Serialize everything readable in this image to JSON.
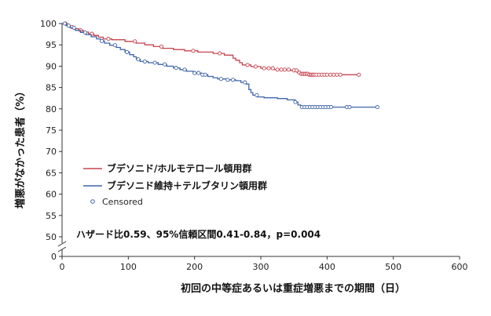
{
  "chart_data": {
    "type": "line",
    "subtype": "kaplan-meier",
    "title": "",
    "xlabel": "初回の中等症あるいは重症増悪までの期間（日）",
    "ylabel": "増悪がなかった患者（%）",
    "xlim": [
      0,
      600
    ],
    "ylim": [
      50,
      100
    ],
    "y_axis_break": true,
    "x_ticks": [
      0,
      100,
      200,
      300,
      400,
      500,
      600
    ],
    "x_tick_labels": [
      "0",
      "100",
      "200",
      "300",
      "400",
      "500",
      "600"
    ],
    "y_ticks": [
      50,
      55,
      60,
      65,
      70,
      75,
      80,
      85,
      90,
      95,
      100
    ],
    "y_tick_labels": [
      "50",
      "55",
      "60",
      "65",
      "70",
      "75",
      "80",
      "85",
      "90",
      "95",
      "100"
    ],
    "y_zero_label": "0",
    "legend": {
      "position": "lower-left",
      "censored_label": "Censored"
    },
    "annotation": "ハザード比0.59、95%信頼区間0.41-0.84，p=0.004",
    "series": [
      {
        "name": "ブデソニド/ホルモテロール頓用群",
        "color": "#c8434f",
        "steps": [
          [
            0,
            100
          ],
          [
            8,
            99.6
          ],
          [
            12,
            99.2
          ],
          [
            18,
            98.8
          ],
          [
            25,
            98.4
          ],
          [
            32,
            98
          ],
          [
            40,
            97.6
          ],
          [
            48,
            97.2
          ],
          [
            55,
            96.8
          ],
          [
            62,
            96.4
          ],
          [
            75,
            96.2
          ],
          [
            95,
            95.8
          ],
          [
            112,
            95.4
          ],
          [
            125,
            95
          ],
          [
            138,
            94.6
          ],
          [
            152,
            94.2
          ],
          [
            168,
            93.9
          ],
          [
            185,
            93.6
          ],
          [
            205,
            93.3
          ],
          [
            228,
            93
          ],
          [
            245,
            92.6
          ],
          [
            258,
            91.9
          ],
          [
            262,
            91.4
          ],
          [
            268,
            90.8
          ],
          [
            272,
            90.3
          ],
          [
            285,
            89.9
          ],
          [
            300,
            89.5
          ],
          [
            320,
            89.2
          ],
          [
            345,
            89
          ],
          [
            355,
            88.5
          ],
          [
            360,
            88.2
          ],
          [
            372,
            88
          ],
          [
            385,
            88
          ],
          [
            448,
            88
          ]
        ],
        "censored_x": [
          5,
          15,
          28,
          45,
          70,
          110,
          150,
          198,
          238,
          280,
          292,
          305,
          312,
          318,
          325,
          331,
          336,
          342,
          350,
          354,
          358,
          361,
          363,
          365,
          367,
          369,
          371,
          373,
          375,
          377,
          379,
          381,
          384,
          388,
          392,
          396,
          400,
          405,
          410,
          415,
          420,
          448
        ]
      },
      {
        "name": "ブデソニド維持＋テルブタリン頓用群",
        "color": "#3f65a8",
        "steps": [
          [
            0,
            100
          ],
          [
            6,
            99.5
          ],
          [
            12,
            99
          ],
          [
            20,
            98.4
          ],
          [
            28,
            97.9
          ],
          [
            36,
            97.4
          ],
          [
            44,
            96.9
          ],
          [
            52,
            96.4
          ],
          [
            58,
            95.9
          ],
          [
            64,
            95.4
          ],
          [
            72,
            94.9
          ],
          [
            82,
            94.4
          ],
          [
            88,
            93.9
          ],
          [
            95,
            93.3
          ],
          [
            102,
            92.7
          ],
          [
            108,
            92.2
          ],
          [
            112,
            91.6
          ],
          [
            118,
            91.1
          ],
          [
            130,
            90.8
          ],
          [
            145,
            90.4
          ],
          [
            158,
            90
          ],
          [
            168,
            89.6
          ],
          [
            178,
            89.2
          ],
          [
            188,
            88.8
          ],
          [
            198,
            88.4
          ],
          [
            210,
            88
          ],
          [
            220,
            87.6
          ],
          [
            228,
            87.3
          ],
          [
            235,
            87
          ],
          [
            250,
            86.8
          ],
          [
            262,
            86.6
          ],
          [
            270,
            86.2
          ],
          [
            278,
            85.8
          ],
          [
            282,
            84.5
          ],
          [
            285,
            83.8
          ],
          [
            288,
            83.2
          ],
          [
            295,
            82.8
          ],
          [
            305,
            82.6
          ],
          [
            325,
            82.4
          ],
          [
            340,
            82.1
          ],
          [
            352,
            81.6
          ],
          [
            356,
            80.9
          ],
          [
            360,
            80.4
          ],
          [
            372,
            80.4
          ],
          [
            476,
            80.4
          ]
        ],
        "censored_x": [
          4,
          10,
          18,
          35,
          60,
          80,
          98,
          115,
          125,
          140,
          155,
          172,
          185,
          200,
          206,
          212,
          216,
          240,
          250,
          258,
          276,
          294,
          352,
          362,
          366,
          370,
          374,
          378,
          382,
          386,
          390,
          394,
          398,
          402,
          406,
          430,
          434,
          476
        ]
      }
    ]
  }
}
